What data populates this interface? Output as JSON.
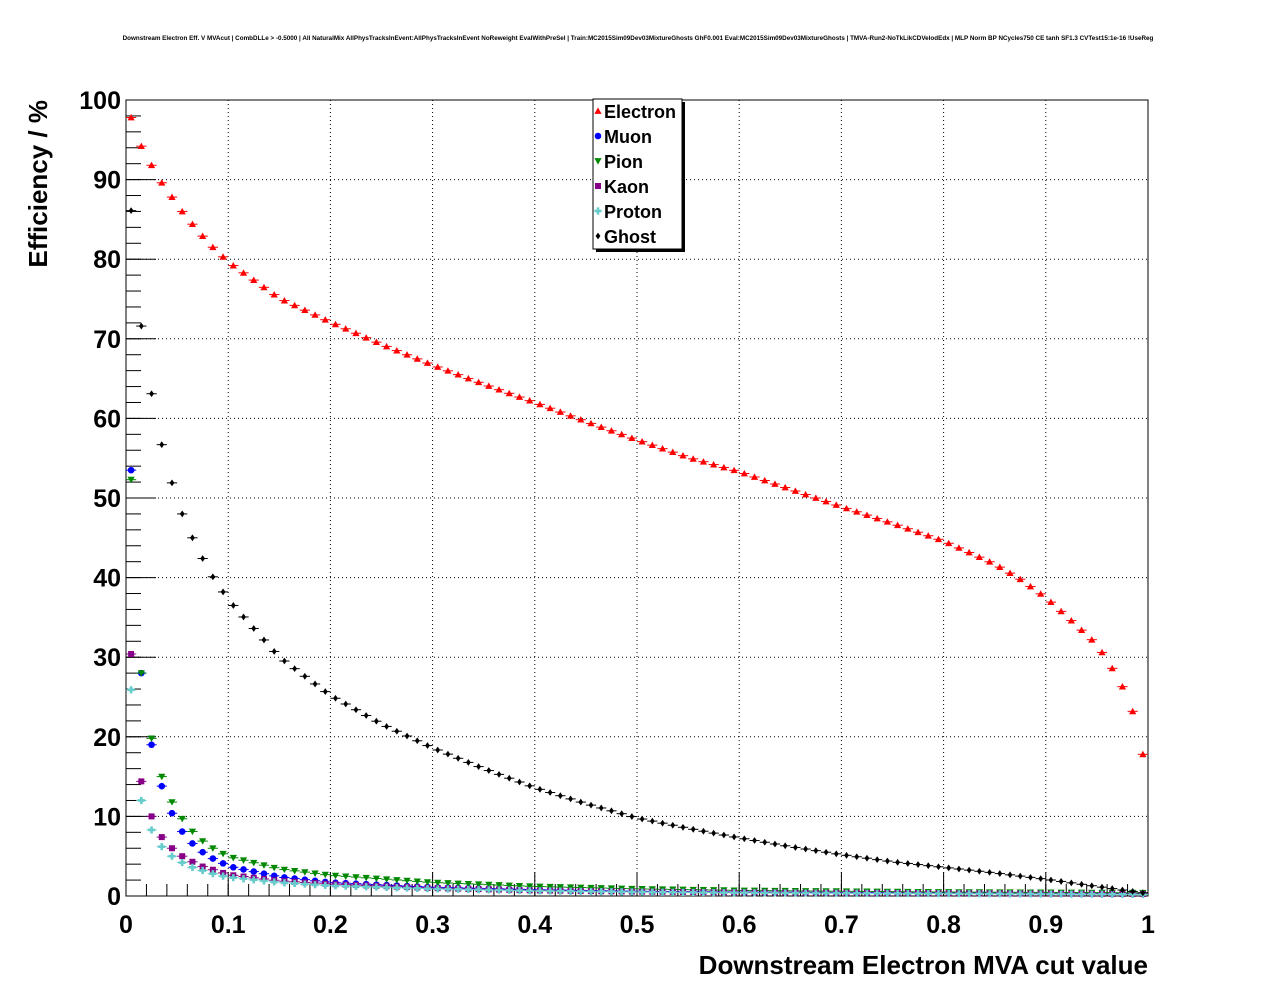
{
  "chart_data": {
    "type": "scatter",
    "title": "Downstream Electron Eff. V MVAcut | CombDLLe > -0.5000 | All NaturalMix AllPhysTracksInEvent:AllPhysTracksInEvent NoReweight EvalWithPreSel | Train:MC2015Sim09Dev03MixtureGhosts GhF0.001 Eval:MC2015Sim09Dev03MixtureGhosts | TMVA-Run2-NoTkLikCDVelodEdx | MLP Norm BP NCycles750 CE tanh SF1.3 CVTest15:1e-16 !UseReg",
    "xlabel": "Downstream Electron MVA cut value",
    "ylabel": "Efficiency / %",
    "xlim": [
      0,
      1
    ],
    "ylim": [
      0,
      100
    ],
    "xticks": [
      "0",
      "0.1",
      "0.2",
      "0.3",
      "0.4",
      "0.5",
      "0.6",
      "0.7",
      "0.8",
      "0.9",
      "1"
    ],
    "yticks": [
      "0",
      "10",
      "20",
      "30",
      "40",
      "50",
      "60",
      "70",
      "80",
      "90",
      "100"
    ],
    "grid": true,
    "legend_position": "top-center",
    "bin_width": 0.01,
    "series": [
      {
        "name": "Electron",
        "color": "#ff0000",
        "marker": "triangle-up",
        "points": [
          [
            0.005,
            97.8
          ],
          [
            0.015,
            94.2
          ],
          [
            0.025,
            91.8
          ],
          [
            0.035,
            89.6
          ],
          [
            0.045,
            87.8
          ],
          [
            0.055,
            86.0
          ],
          [
            0.065,
            84.4
          ],
          [
            0.075,
            82.9
          ],
          [
            0.085,
            81.5
          ],
          [
            0.095,
            80.3
          ],
          [
            0.105,
            79.2
          ],
          [
            0.15,
            75.1
          ],
          [
            0.2,
            72.1
          ],
          [
            0.25,
            69.3
          ],
          [
            0.3,
            66.7
          ],
          [
            0.35,
            64.3
          ],
          [
            0.4,
            62.0
          ],
          [
            0.45,
            59.6
          ],
          [
            0.5,
            57.3
          ],
          [
            0.55,
            55.1
          ],
          [
            0.6,
            53.3
          ],
          [
            0.65,
            51.1
          ],
          [
            0.7,
            48.9
          ],
          [
            0.75,
            46.8
          ],
          [
            0.8,
            44.6
          ],
          [
            0.85,
            41.7
          ],
          [
            0.875,
            39.8
          ],
          [
            0.9,
            37.5
          ],
          [
            0.925,
            34.6
          ],
          [
            0.945,
            32.2
          ],
          [
            0.955,
            30.6
          ],
          [
            0.965,
            28.6
          ],
          [
            0.975,
            26.3
          ],
          [
            0.985,
            23.2
          ],
          [
            0.995,
            17.8
          ]
        ]
      },
      {
        "name": "Muon",
        "color": "#0000ff",
        "marker": "circle",
        "points": [
          [
            0.005,
            53.5
          ],
          [
            0.015,
            28.0
          ],
          [
            0.025,
            19.0
          ],
          [
            0.035,
            13.8
          ],
          [
            0.045,
            10.4
          ],
          [
            0.055,
            8.1
          ],
          [
            0.065,
            6.6
          ],
          [
            0.075,
            5.5
          ],
          [
            0.085,
            4.7
          ],
          [
            0.095,
            4.1
          ],
          [
            0.105,
            3.6
          ],
          [
            0.15,
            2.4
          ],
          [
            0.2,
            1.7
          ],
          [
            0.3,
            1.1
          ],
          [
            0.4,
            0.8
          ],
          [
            0.5,
            0.6
          ],
          [
            0.6,
            0.5
          ],
          [
            0.7,
            0.45
          ],
          [
            0.8,
            0.4
          ],
          [
            0.9,
            0.35
          ],
          [
            0.995,
            0.3
          ]
        ]
      },
      {
        "name": "Pion",
        "color": "#008800",
        "marker": "triangle-down",
        "points": [
          [
            0.005,
            52.3
          ],
          [
            0.015,
            28.0
          ],
          [
            0.025,
            19.8
          ],
          [
            0.035,
            15.0
          ],
          [
            0.045,
            11.8
          ],
          [
            0.055,
            9.7
          ],
          [
            0.065,
            8.1
          ],
          [
            0.075,
            6.9
          ],
          [
            0.085,
            6.0
          ],
          [
            0.095,
            5.3
          ],
          [
            0.105,
            4.8
          ],
          [
            0.15,
            3.4
          ],
          [
            0.2,
            2.6
          ],
          [
            0.3,
            1.7
          ],
          [
            0.4,
            1.2
          ],
          [
            0.5,
            0.9
          ],
          [
            0.6,
            0.7
          ],
          [
            0.7,
            0.6
          ],
          [
            0.8,
            0.5
          ],
          [
            0.9,
            0.45
          ],
          [
            0.995,
            0.4
          ]
        ]
      },
      {
        "name": "Kaon",
        "color": "#880088",
        "marker": "square",
        "points": [
          [
            0.005,
            30.4
          ],
          [
            0.015,
            14.4
          ],
          [
            0.025,
            10.0
          ],
          [
            0.035,
            7.4
          ],
          [
            0.045,
            6.0
          ],
          [
            0.055,
            5.0
          ],
          [
            0.065,
            4.3
          ],
          [
            0.075,
            3.7
          ],
          [
            0.085,
            3.3
          ],
          [
            0.095,
            2.9
          ],
          [
            0.105,
            2.6
          ],
          [
            0.15,
            1.9
          ],
          [
            0.2,
            1.5
          ],
          [
            0.3,
            1.0
          ],
          [
            0.4,
            0.7
          ],
          [
            0.5,
            0.55
          ],
          [
            0.6,
            0.45
          ],
          [
            0.7,
            0.4
          ],
          [
            0.8,
            0.35
          ],
          [
            0.9,
            0.3
          ],
          [
            0.995,
            0.25
          ]
        ]
      },
      {
        "name": "Proton",
        "color": "#66cccc",
        "marker": "cross",
        "points": [
          [
            0.005,
            25.9
          ],
          [
            0.015,
            12.0
          ],
          [
            0.025,
            8.3
          ],
          [
            0.035,
            6.2
          ],
          [
            0.045,
            5.0
          ],
          [
            0.055,
            4.2
          ],
          [
            0.065,
            3.6
          ],
          [
            0.075,
            3.2
          ],
          [
            0.085,
            2.8
          ],
          [
            0.095,
            2.5
          ],
          [
            0.105,
            2.3
          ],
          [
            0.15,
            1.7
          ],
          [
            0.2,
            1.3
          ],
          [
            0.3,
            0.9
          ],
          [
            0.4,
            0.65
          ],
          [
            0.5,
            0.5
          ],
          [
            0.6,
            0.4
          ],
          [
            0.7,
            0.35
          ],
          [
            0.8,
            0.3
          ],
          [
            0.9,
            0.25
          ],
          [
            0.995,
            0.2
          ]
        ]
      },
      {
        "name": "Ghost",
        "color": "#000000",
        "marker": "diamond",
        "points": [
          [
            0.005,
            86.1
          ],
          [
            0.015,
            71.6
          ],
          [
            0.025,
            63.1
          ],
          [
            0.035,
            56.7
          ],
          [
            0.045,
            51.9
          ],
          [
            0.055,
            48.0
          ],
          [
            0.065,
            45.0
          ],
          [
            0.075,
            42.4
          ],
          [
            0.085,
            40.1
          ],
          [
            0.095,
            38.2
          ],
          [
            0.105,
            36.5
          ],
          [
            0.15,
            30.0
          ],
          [
            0.2,
            25.2
          ],
          [
            0.25,
            21.6
          ],
          [
            0.3,
            18.6
          ],
          [
            0.35,
            16.0
          ],
          [
            0.4,
            13.6
          ],
          [
            0.45,
            11.6
          ],
          [
            0.5,
            9.8
          ],
          [
            0.55,
            8.5
          ],
          [
            0.6,
            7.3
          ],
          [
            0.65,
            6.2
          ],
          [
            0.7,
            5.2
          ],
          [
            0.75,
            4.3
          ],
          [
            0.8,
            3.6
          ],
          [
            0.85,
            2.9
          ],
          [
            0.9,
            2.1
          ],
          [
            0.95,
            1.2
          ],
          [
            0.995,
            0.4
          ]
        ]
      }
    ]
  }
}
